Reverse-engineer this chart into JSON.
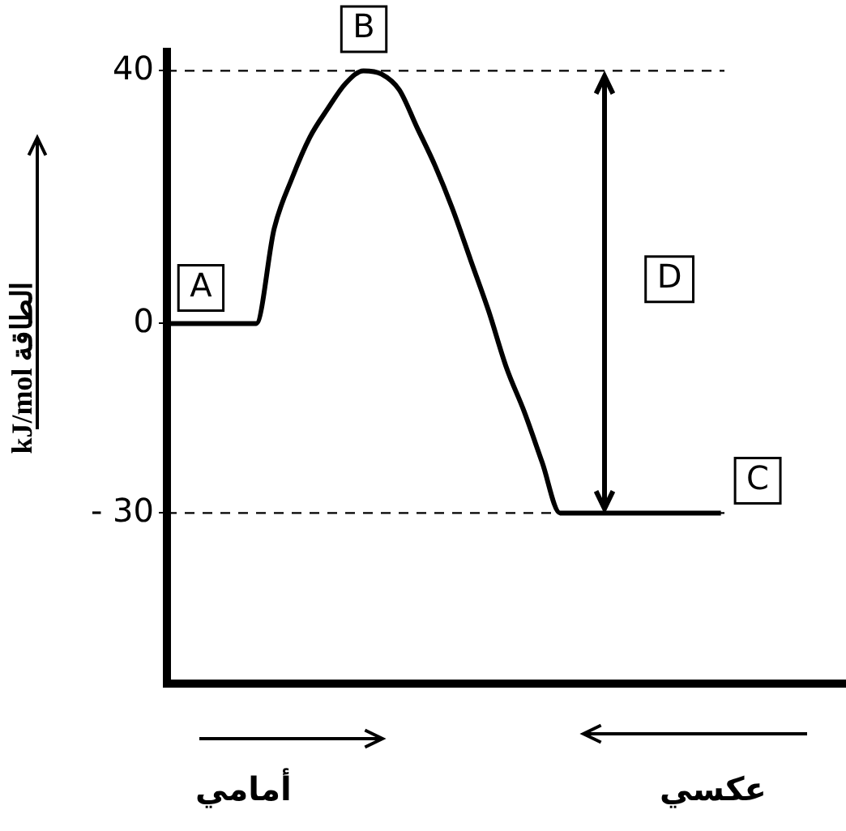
{
  "chart_data": {
    "type": "line",
    "ylabel": "kJ/mol الطاقة",
    "color": "#000000",
    "categories": [
      null,
      null,
      null,
      null,
      null,
      null,
      null,
      null,
      null,
      null,
      null,
      null,
      null,
      null,
      null,
      null,
      null,
      null,
      null,
      null,
      null,
      null,
      null,
      null,
      null,
      null,
      null,
      null,
      null,
      null,
      null,
      null,
      null,
      null,
      null,
      null,
      null,
      null,
      null
    ],
    "values": [
      0,
      0,
      0,
      0,
      0,
      0,
      15,
      23,
      29.5,
      34,
      38,
      40,
      39.5,
      37,
      31,
      25,
      18,
      10,
      2,
      -7,
      -14,
      -22,
      -30,
      -30,
      -30,
      -30,
      -30,
      -30,
      -30,
      -30,
      -30,
      -30,
      null,
      null,
      null,
      null,
      null,
      null,
      null
    ],
    "ylim": [
      -57,
      43
    ],
    "yticks": [
      40,
      0,
      {
        "value": -30,
        "label": "- 30"
      }
    ],
    "ref_lines": [
      {
        "axis": "y",
        "value": 40,
        "line_style": "dashed"
      },
      {
        "axis": "y",
        "value": -30,
        "line_style": "dashed"
      }
    ],
    "annotations": [
      "A",
      "B",
      "C",
      "D",
      "أمامي",
      "عكسي"
    ],
    "tick_labels": "y",
    "grid": false,
    "legend": false,
    "marker": "none",
    "line_style": "solid"
  }
}
